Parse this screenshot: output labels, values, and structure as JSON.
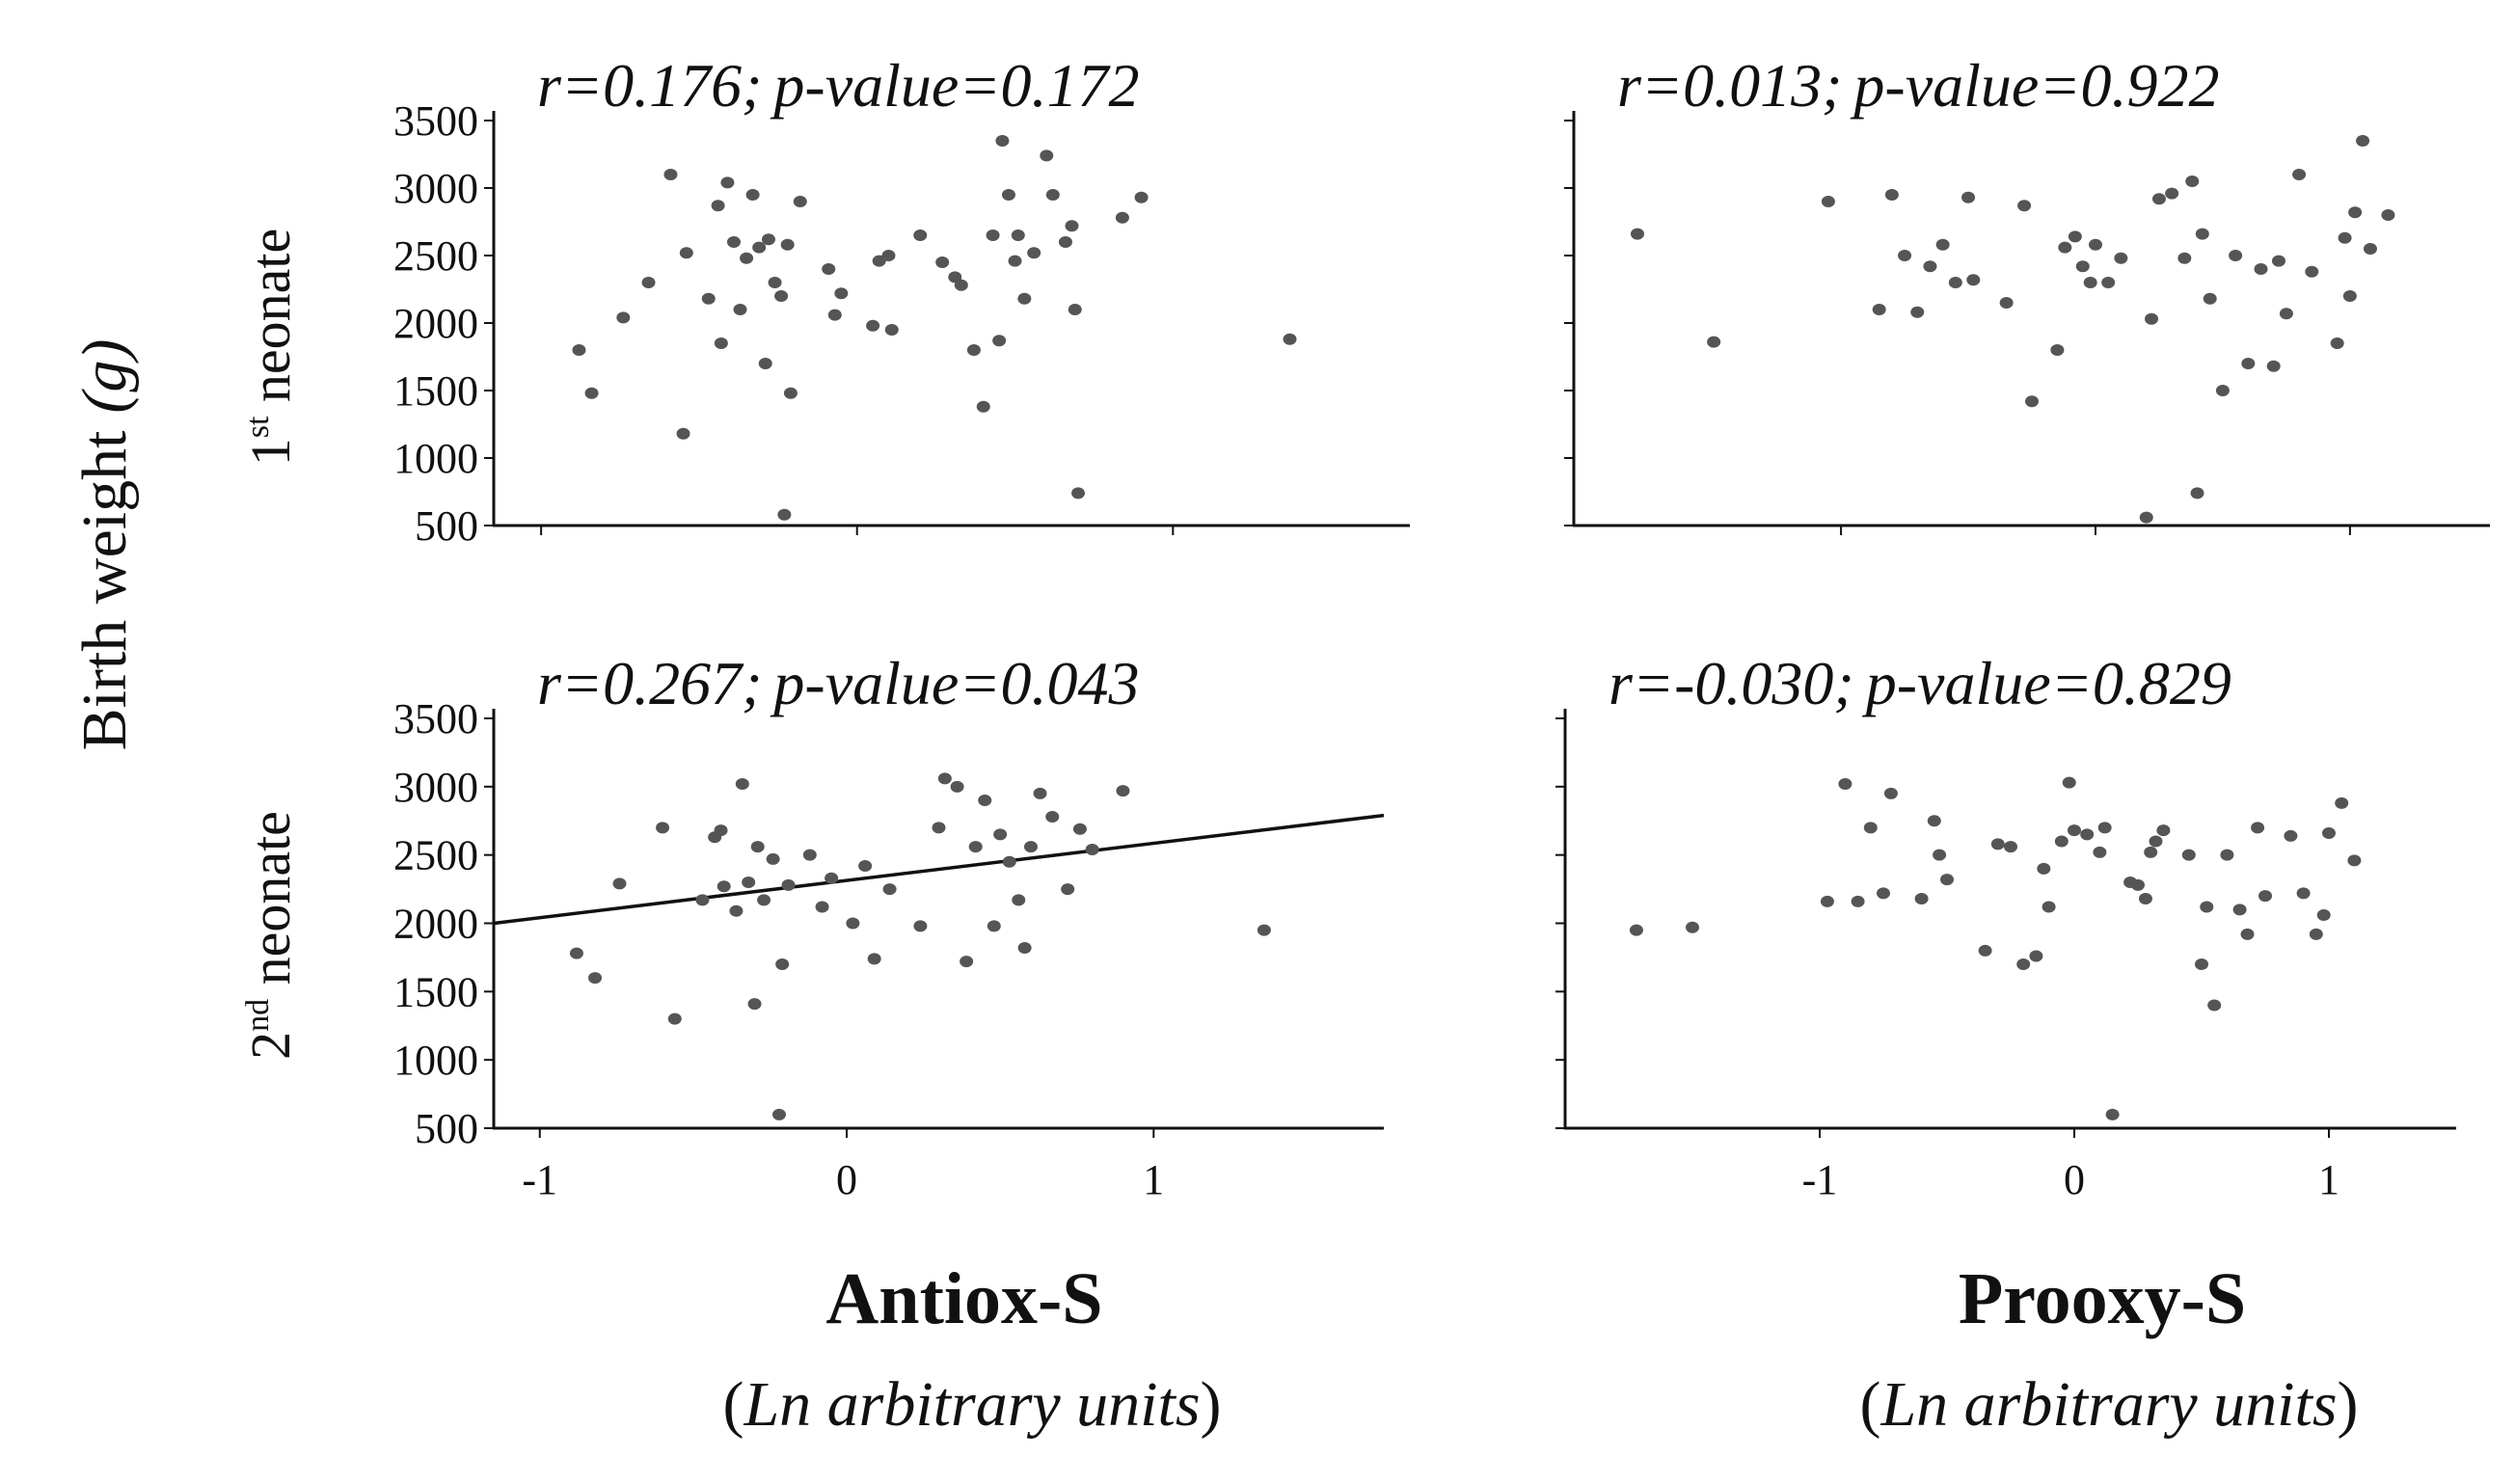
{
  "figure": {
    "y_axis_title": "Birth weight",
    "y_axis_unit": "(g)",
    "row_labels": [
      {
        "ordinal": "1",
        "suffix": "st",
        "word": " neonate"
      },
      {
        "ordinal": "2",
        "suffix": "nd",
        "word": " neonate"
      }
    ],
    "column_titles": [
      {
        "name": "Antiox-S",
        "units_prefix": "(",
        "units_ln": "Ln",
        "units_rest": " arbitrary units",
        "units_suffix": ")"
      },
      {
        "name": "Prooxy-S",
        "units_prefix": "(",
        "units_ln": "Ln",
        "units_rest": " arbitrary units",
        "units_suffix": ")"
      }
    ]
  },
  "chart_data": [
    {
      "type": "scatter",
      "panel": "1st neonate vs Antiox-S",
      "annotation": {
        "r": "r=0.176;",
        "p": "p-value=0.172"
      },
      "xlim": [
        -1.15,
        1.75
      ],
      "ylim": [
        500,
        3500
      ],
      "yticks": [
        500,
        1000,
        1500,
        2000,
        2500,
        3000,
        3500
      ],
      "ytick_labels": [
        "500",
        "1000",
        "1500",
        "2000",
        "2500",
        "3000",
        "3500"
      ],
      "xticks": [
        -1,
        0,
        1
      ],
      "xtick_labels": [],
      "points": [
        [
          -0.88,
          1800
        ],
        [
          -0.84,
          1480
        ],
        [
          -0.74,
          2040
        ],
        [
          -0.66,
          2300
        ],
        [
          -0.59,
          3100
        ],
        [
          -0.55,
          1180
        ],
        [
          -0.54,
          2520
        ],
        [
          -0.47,
          2180
        ],
        [
          -0.44,
          2870
        ],
        [
          -0.43,
          1850
        ],
        [
          -0.41,
          3040
        ],
        [
          -0.39,
          2600
        ],
        [
          -0.37,
          2100
        ],
        [
          -0.35,
          2480
        ],
        [
          -0.33,
          2950
        ],
        [
          -0.31,
          2560
        ],
        [
          -0.29,
          1700
        ],
        [
          -0.28,
          2620
        ],
        [
          -0.26,
          2300
        ],
        [
          -0.24,
          2200
        ],
        [
          -0.23,
          580
        ],
        [
          -0.22,
          2580
        ],
        [
          -0.21,
          1480
        ],
        [
          -0.18,
          2900
        ],
        [
          -0.09,
          2400
        ],
        [
          -0.07,
          2060
        ],
        [
          -0.05,
          2220
        ],
        [
          0.05,
          1980
        ],
        [
          0.07,
          2460
        ],
        [
          0.1,
          2500
        ],
        [
          0.11,
          1950
        ],
        [
          0.2,
          2650
        ],
        [
          0.27,
          2450
        ],
        [
          0.31,
          2340
        ],
        [
          0.33,
          2280
        ],
        [
          0.37,
          1800
        ],
        [
          0.4,
          1380
        ],
        [
          0.43,
          2650
        ],
        [
          0.45,
          1870
        ],
        [
          0.46,
          3350
        ],
        [
          0.48,
          2950
        ],
        [
          0.5,
          2460
        ],
        [
          0.51,
          2650
        ],
        [
          0.53,
          2180
        ],
        [
          0.56,
          2520
        ],
        [
          0.6,
          3240
        ],
        [
          0.62,
          2950
        ],
        [
          0.66,
          2600
        ],
        [
          0.68,
          2720
        ],
        [
          0.69,
          2100
        ],
        [
          0.7,
          740
        ],
        [
          0.84,
          2780
        ],
        [
          0.9,
          2930
        ],
        [
          1.37,
          1880
        ]
      ],
      "trend_line": null
    },
    {
      "type": "scatter",
      "panel": "1st neonate vs Prooxy-S",
      "annotation": {
        "r": "r=0.013;",
        "p": "p-value=0.922"
      },
      "xlim": [
        -2.05,
        1.55
      ],
      "ylim": [
        500,
        3500
      ],
      "yticks": [
        500,
        1000,
        1500,
        2000,
        2500,
        3000,
        3500
      ],
      "ytick_labels": [],
      "xticks": [
        -1,
        0,
        1
      ],
      "xtick_labels": [],
      "points": [
        [
          -1.8,
          2660
        ],
        [
          -1.5,
          1860
        ],
        [
          -1.05,
          2900
        ],
        [
          -0.85,
          2100
        ],
        [
          -0.8,
          2950
        ],
        [
          -0.75,
          2500
        ],
        [
          -0.7,
          2080
        ],
        [
          -0.65,
          2420
        ],
        [
          -0.6,
          2580
        ],
        [
          -0.55,
          2300
        ],
        [
          -0.5,
          2930
        ],
        [
          -0.48,
          2320
        ],
        [
          -0.35,
          2150
        ],
        [
          -0.28,
          2870
        ],
        [
          -0.25,
          1420
        ],
        [
          -0.15,
          1800
        ],
        [
          -0.12,
          2560
        ],
        [
          -0.08,
          2640
        ],
        [
          -0.05,
          2420
        ],
        [
          -0.02,
          2300
        ],
        [
          0.0,
          2580
        ],
        [
          0.05,
          2300
        ],
        [
          0.1,
          2480
        ],
        [
          0.2,
          560
        ],
        [
          0.22,
          2030
        ],
        [
          0.25,
          2920
        ],
        [
          0.3,
          2960
        ],
        [
          0.35,
          2480
        ],
        [
          0.38,
          3050
        ],
        [
          0.4,
          740
        ],
        [
          0.42,
          2660
        ],
        [
          0.45,
          2180
        ],
        [
          0.5,
          1500
        ],
        [
          0.55,
          2500
        ],
        [
          0.6,
          1700
        ],
        [
          0.65,
          2400
        ],
        [
          0.7,
          1680
        ],
        [
          0.72,
          2460
        ],
        [
          0.75,
          2070
        ],
        [
          0.8,
          3100
        ],
        [
          0.85,
          2380
        ],
        [
          0.95,
          1850
        ],
        [
          0.98,
          2630
        ],
        [
          1.0,
          2200
        ],
        [
          1.02,
          2820
        ],
        [
          1.05,
          3350
        ],
        [
          1.08,
          2550
        ],
        [
          1.15,
          2800
        ]
      ],
      "trend_line": null
    },
    {
      "type": "scatter",
      "panel": "2nd neonate vs Antiox-S",
      "annotation": {
        "r": "r=0.267;",
        "p": "p-value=0.043"
      },
      "xlim": [
        -1.15,
        1.75
      ],
      "ylim": [
        500,
        3500
      ],
      "yticks": [
        500,
        1000,
        1500,
        2000,
        2500,
        3000,
        3500
      ],
      "ytick_labels": [
        "500",
        "1000",
        "1500",
        "2000",
        "2500",
        "3000",
        "3500"
      ],
      "xticks": [
        -1,
        0,
        1
      ],
      "xtick_labels": [
        "-1",
        "0",
        "1"
      ],
      "points": [
        [
          -0.88,
          1780
        ],
        [
          -0.82,
          1600
        ],
        [
          -0.74,
          2290
        ],
        [
          -0.6,
          2700
        ],
        [
          -0.56,
          1300
        ],
        [
          -0.47,
          2170
        ],
        [
          -0.43,
          2630
        ],
        [
          -0.41,
          2680
        ],
        [
          -0.4,
          2270
        ],
        [
          -0.36,
          2090
        ],
        [
          -0.34,
          3020
        ],
        [
          -0.32,
          2300
        ],
        [
          -0.3,
          1410
        ],
        [
          -0.29,
          2560
        ],
        [
          -0.27,
          2170
        ],
        [
          -0.24,
          2470
        ],
        [
          -0.22,
          600
        ],
        [
          -0.21,
          1700
        ],
        [
          -0.19,
          2280
        ],
        [
          -0.12,
          2500
        ],
        [
          -0.08,
          2120
        ],
        [
          -0.05,
          2330
        ],
        [
          0.02,
          2000
        ],
        [
          0.06,
          2420
        ],
        [
          0.09,
          1740
        ],
        [
          0.14,
          2250
        ],
        [
          0.24,
          1980
        ],
        [
          0.3,
          2700
        ],
        [
          0.32,
          3060
        ],
        [
          0.36,
          3000
        ],
        [
          0.39,
          1720
        ],
        [
          0.42,
          2560
        ],
        [
          0.45,
          2900
        ],
        [
          0.48,
          1980
        ],
        [
          0.5,
          2650
        ],
        [
          0.53,
          2450
        ],
        [
          0.56,
          2170
        ],
        [
          0.58,
          1820
        ],
        [
          0.6,
          2560
        ],
        [
          0.63,
          2950
        ],
        [
          0.67,
          2780
        ],
        [
          0.72,
          2250
        ],
        [
          0.76,
          2690
        ],
        [
          0.8,
          2540
        ],
        [
          0.9,
          2970
        ],
        [
          1.36,
          1950
        ]
      ],
      "trend_line": {
        "x": [
          -1.15,
          1.75
        ],
        "y": [
          2000,
          2790
        ]
      }
    },
    {
      "type": "scatter",
      "panel": "2nd neonate vs Prooxy-S",
      "annotation": {
        "r": "r=-0.030;",
        "p": "p-value=0.829"
      },
      "xlim": [
        -2.0,
        1.5
      ],
      "ylim": [
        500,
        3500
      ],
      "yticks": [
        500,
        1000,
        1500,
        2000,
        2500,
        3000,
        3500
      ],
      "ytick_labels": [],
      "xticks": [
        -1,
        0,
        1
      ],
      "xtick_labels": [
        "-1",
        "0",
        "1"
      ],
      "points": [
        [
          -1.72,
          1950
        ],
        [
          -1.5,
          1970
        ],
        [
          -0.97,
          2160
        ],
        [
          -0.9,
          3020
        ],
        [
          -0.85,
          2160
        ],
        [
          -0.8,
          2700
        ],
        [
          -0.75,
          2220
        ],
        [
          -0.72,
          2950
        ],
        [
          -0.6,
          2180
        ],
        [
          -0.55,
          2750
        ],
        [
          -0.53,
          2500
        ],
        [
          -0.5,
          2320
        ],
        [
          -0.35,
          1800
        ],
        [
          -0.3,
          2580
        ],
        [
          -0.25,
          2560
        ],
        [
          -0.2,
          1700
        ],
        [
          -0.15,
          1760
        ],
        [
          -0.12,
          2400
        ],
        [
          -0.1,
          2120
        ],
        [
          -0.05,
          2600
        ],
        [
          -0.02,
          3030
        ],
        [
          0.0,
          2680
        ],
        [
          0.05,
          2650
        ],
        [
          0.1,
          2520
        ],
        [
          0.12,
          2700
        ],
        [
          0.15,
          600
        ],
        [
          0.22,
          2300
        ],
        [
          0.25,
          2280
        ],
        [
          0.28,
          2180
        ],
        [
          0.3,
          2520
        ],
        [
          0.32,
          2600
        ],
        [
          0.35,
          2680
        ],
        [
          0.45,
          2500
        ],
        [
          0.5,
          1700
        ],
        [
          0.52,
          2120
        ],
        [
          0.55,
          1400
        ],
        [
          0.6,
          2500
        ],
        [
          0.65,
          2100
        ],
        [
          0.68,
          1920
        ],
        [
          0.72,
          2700
        ],
        [
          0.75,
          2200
        ],
        [
          0.85,
          2640
        ],
        [
          0.9,
          2220
        ],
        [
          0.95,
          1920
        ],
        [
          0.98,
          2060
        ],
        [
          1.0,
          2660
        ],
        [
          1.05,
          2880
        ],
        [
          1.1,
          2460
        ]
      ],
      "trend_line": null
    }
  ]
}
